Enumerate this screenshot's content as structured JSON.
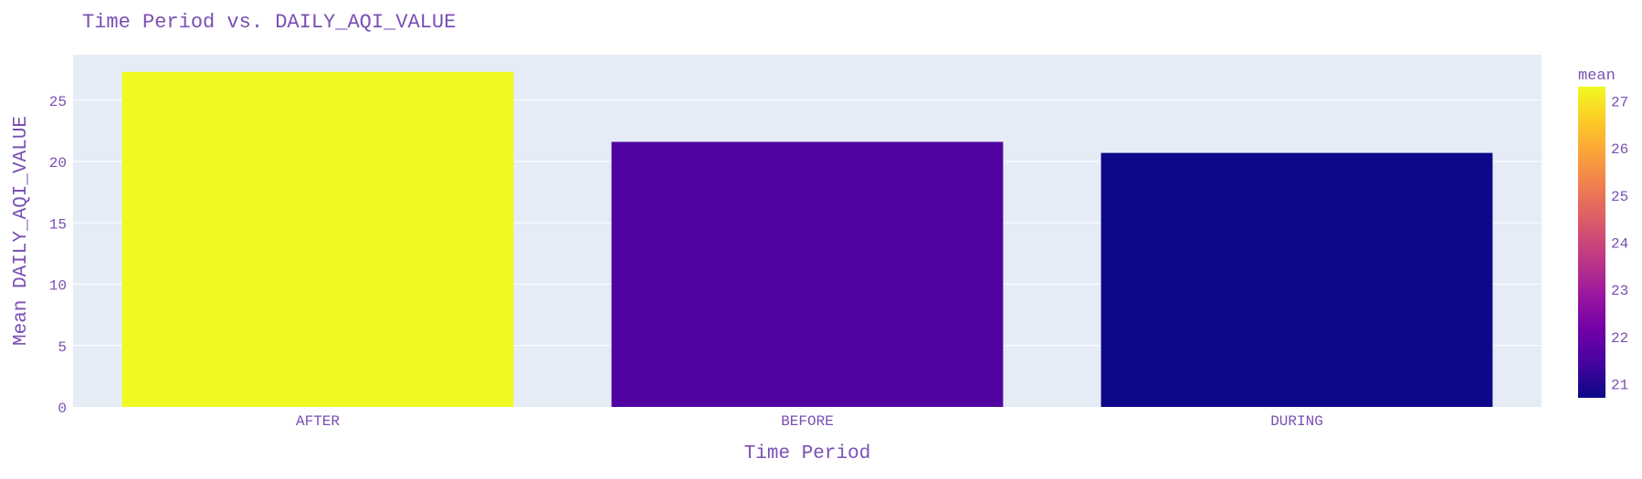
{
  "chart_data": {
    "type": "bar",
    "title": "Time Period vs. DAILY_AQI_VALUE",
    "xlabel": "Time Period",
    "ylabel": "Mean DAILY_AQI_VALUE",
    "categories": [
      "AFTER",
      "BEFORE",
      "DURING"
    ],
    "values": [
      27.3,
      21.6,
      20.7
    ],
    "ylim": [
      0,
      28.7
    ],
    "yticks": [
      0,
      5,
      10,
      15,
      20,
      25
    ],
    "grid": true,
    "colorbar": {
      "title": "mean",
      "range": [
        20.7,
        27.3
      ],
      "ticks": [
        21,
        22,
        23,
        24,
        25,
        26,
        27
      ],
      "colorscale": [
        "#0d0887",
        "#46039f",
        "#7201a8",
        "#9c179e",
        "#bd3786",
        "#d8576b",
        "#ed7953",
        "#fb9f3a",
        "#fdca26",
        "#f0f921"
      ]
    },
    "colors": {
      "plot_bg": "#e5ecf6",
      "grid": "#ffffff",
      "text": "#7a4fb3"
    }
  }
}
